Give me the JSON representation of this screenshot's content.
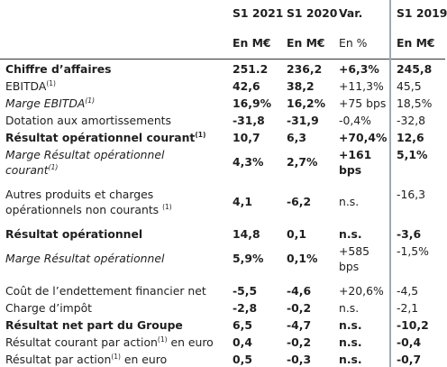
{
  "header": {
    "s1_2021": "S1 2021",
    "s1_2020": "S1 2020",
    "var": "Var.",
    "s1_2019": "S1 2019",
    "unit_a": "En M€",
    "unit_b": "En M€",
    "unit_c": "En %",
    "unit_d": "En M€"
  },
  "rows": [
    {
      "label": "Chiffre d’affaires",
      "sup": "",
      "label2": "",
      "a": "251.2",
      "b": "236,2",
      "c": "+6,3%",
      "d": "245,8"
    },
    {
      "label": "EBITDA",
      "sup": "(1)",
      "label2": "",
      "a": "42,6",
      "b": "38,2",
      "c": "+11,3%",
      "d": "45,5"
    },
    {
      "label": "Marge EBITDA",
      "sup": "(1)",
      "label2": "",
      "a": "16,9%",
      "b": "16,2%",
      "c": "+75 bps",
      "d": "18,5%"
    },
    {
      "label": "Dotation aux amortissements",
      "sup": "",
      "label2": "",
      "a": "-31,8",
      "b": "-31,9",
      "c": "-0,4%",
      "d": "-32,8"
    },
    {
      "label": "Résultat opérationnel courant",
      "sup": "(1)",
      "label2": "",
      "a": "10,7",
      "b": "6,3",
      "c": "+70,4%",
      "d": "12,6"
    },
    {
      "label": "Marge Résultat opérationnel",
      "sup": "(1)",
      "label2": "courant",
      "a": "4,3%",
      "b": "2,7%",
      "c": "+161",
      "c2": "bps",
      "d": "5,1%"
    },
    {
      "label": "Autres produits et charges",
      "sup": "(1)",
      "label2": "opérationnels non courants",
      "a": "4,1",
      "b": "-6,2",
      "c": "n.s.",
      "d": "-16,3"
    },
    {
      "label": "Résultat opérationnel",
      "sup": "",
      "label2": "",
      "a": "14,8",
      "b": "0,1",
      "c": "n.s.",
      "d": "-3,6"
    },
    {
      "label": "Marge Résultat opérationnel",
      "sup": "",
      "label2": "",
      "a": "5,9%",
      "b": "0,1%",
      "c": "+585",
      "c2": "bps",
      "d": "-1,5%"
    },
    {
      "label": "Coût de l’endettement financier net",
      "sup": "",
      "label2": "",
      "a": "-5,5",
      "b": "-4,6",
      "c": "+20,6%",
      "d": "-4,5"
    },
    {
      "label": "Charge d’impôt",
      "sup": "",
      "label2": "",
      "a": "-2,8",
      "b": "-0,2",
      "c": "n.s.",
      "d": "-2,1"
    },
    {
      "label": "Résultat net part du Groupe",
      "sup": "",
      "label2": "",
      "a": "6,5",
      "b": "-4,7",
      "c": "n.s.",
      "d": "-10,2"
    },
    {
      "label": "Résultat courant par action",
      "sup": "(1)",
      "label_suffix": " en euro",
      "label2": "",
      "a": "0,4",
      "b": "-0,2",
      "c": "n.s.",
      "d": "-0,4"
    },
    {
      "label": "Résultat par action",
      "sup": "(1)",
      "label_suffix": " en euro",
      "label2": "",
      "a": "0,5",
      "b": "-0,3",
      "c": "n.s.",
      "d": "-0,7"
    }
  ]
}
